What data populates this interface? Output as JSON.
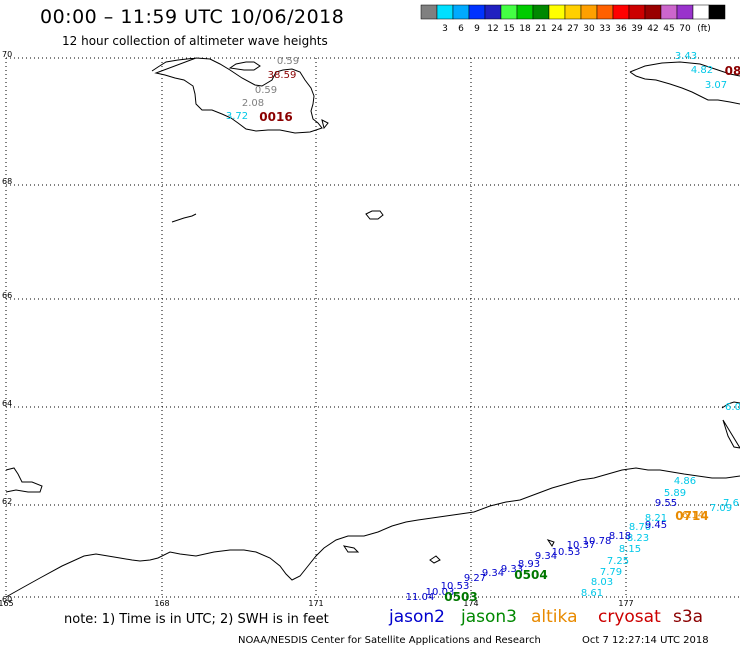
{
  "header": {
    "title": "00:00 – 11:59 UTC 10/06/2018",
    "subtitle": "12 hour collection of altimeter wave heights"
  },
  "color_scale": {
    "colors": [
      "#808080",
      "#00e0ff",
      "#00aaff",
      "#0033ff",
      "#2020c0",
      "#44ff44",
      "#00cc00",
      "#008800",
      "#ffff00",
      "#ffd000",
      "#ffa000",
      "#ff6000",
      "#ff0000",
      "#cc0000",
      "#990000",
      "#cc66cc",
      "#9933cc",
      "#ffffff",
      "#000000"
    ],
    "labels": [
      "3",
      "6",
      "9",
      "12",
      "15",
      "18",
      "21",
      "24",
      "27",
      "30",
      "33",
      "36",
      "39",
      "42",
      "45",
      "70"
    ],
    "unit": "(ft)"
  },
  "axes": {
    "lat_labels": [
      "70",
      "68",
      "66",
      "64",
      "62",
      "60"
    ],
    "lon_labels": [
      "165",
      "168",
      "171",
      "174",
      "177"
    ]
  },
  "map_labels": {
    "wave_heights": [
      {
        "text": "0.59",
        "color": "#808080"
      },
      {
        "text": "38.59",
        "color": "#8b0000"
      },
      {
        "text": "0.59",
        "color": "#808080"
      },
      {
        "text": "2.08",
        "color": "#808080"
      },
      {
        "text": "3.72",
        "color": "#00c8e8"
      },
      {
        "text": "3.43",
        "color": "#00c8e8"
      },
      {
        "text": "4.82",
        "color": "#00c8e8"
      },
      {
        "text": "3.07",
        "color": "#00c8e8"
      },
      {
        "text": "6.0",
        "color": "#00c8e8"
      },
      {
        "text": "4.86",
        "color": "#00c8e8"
      },
      {
        "text": "5.89",
        "color": "#00c8e8"
      },
      {
        "text": "7.09",
        "color": "#00c8e8"
      },
      {
        "text": "7.6",
        "color": "#00c8e8"
      },
      {
        "text": "8.21",
        "color": "#00c8e8"
      },
      {
        "text": "8.70",
        "color": "#00c8e8"
      },
      {
        "text": "8.23",
        "color": "#00c8e8"
      },
      {
        "text": "8.15",
        "color": "#00c8e8"
      },
      {
        "text": "7.25",
        "color": "#00c8e8"
      },
      {
        "text": "7.79",
        "color": "#00c8e8"
      },
      {
        "text": "8.03",
        "color": "#00c8e8"
      },
      {
        "text": "8.61",
        "color": "#00c8e8"
      },
      {
        "text": "9.55",
        "color": "#0000cc"
      },
      {
        "text": "9.45",
        "color": "#0000cc"
      },
      {
        "text": "8.18",
        "color": "#0000cc"
      },
      {
        "text": "10.78",
        "color": "#0000cc"
      },
      {
        "text": "10.37",
        "color": "#0000cc"
      },
      {
        "text": "10.53",
        "color": "#0000cc"
      },
      {
        "text": "9.34",
        "color": "#0000cc"
      },
      {
        "text": "8.93",
        "color": "#0000cc"
      },
      {
        "text": "9.33",
        "color": "#0000cc"
      },
      {
        "text": "9.34",
        "color": "#0000cc"
      },
      {
        "text": "9.27",
        "color": "#0000cc"
      },
      {
        "text": "10.53",
        "color": "#0000cc"
      },
      {
        "text": "10.03",
        "color": "#0000cc"
      },
      {
        "text": "11.04",
        "color": "#0000cc"
      },
      {
        "text": "6.14",
        "color": "#e88a00"
      }
    ],
    "times": [
      {
        "text": "0016",
        "color": "#8b0000"
      },
      {
        "text": "08",
        "color": "#8b0000"
      },
      {
        "text": "0504",
        "color": "#007700"
      },
      {
        "text": "0503",
        "color": "#007700"
      },
      {
        "text": "0714",
        "color": "#e88a00"
      }
    ]
  },
  "footer": {
    "note": "note: 1) Time is in UTC; 2) SWH is in feet",
    "satellites": [
      {
        "name": "jason2",
        "color": "#0000cc"
      },
      {
        "name": "jason3",
        "color": "#008800"
      },
      {
        "name": "altika",
        "color": "#e88a00"
      },
      {
        "name": "cryosat",
        "color": "#cc0000"
      },
      {
        "name": "s3a",
        "color": "#8b0000"
      }
    ],
    "credit": "NOAA/NESDIS Center for Satellite Applications and Research",
    "timestamp": "Oct  7 12:27:14 UTC 2018"
  }
}
